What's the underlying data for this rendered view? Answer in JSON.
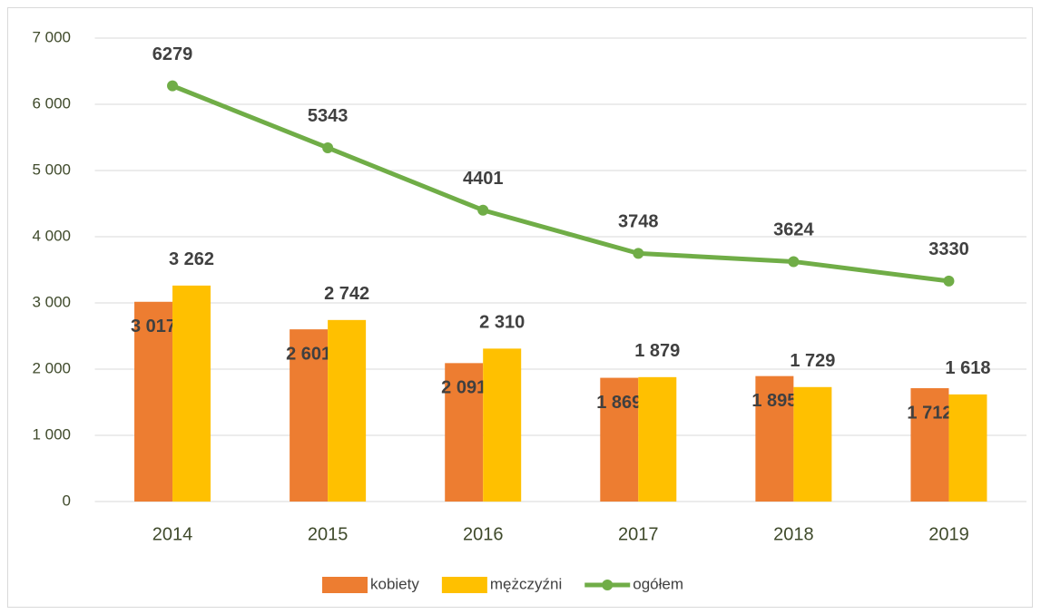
{
  "chart_data": {
    "type": "bar-line",
    "categories": [
      "2014",
      "2015",
      "2016",
      "2017",
      "2018",
      "2019"
    ],
    "series": [
      {
        "name": "kobiety",
        "type": "bar",
        "color": "#ed7d31",
        "values": [
          3017,
          2601,
          2091,
          1869,
          1895,
          1712
        ],
        "value_labels": [
          "3 017",
          "2 601",
          "2 091",
          "1 869",
          "1 895",
          "1 712"
        ]
      },
      {
        "name": "mężczyźni",
        "type": "bar",
        "color": "#ffc000",
        "values": [
          3262,
          2742,
          2310,
          1879,
          1729,
          1618
        ],
        "value_labels": [
          "3 262",
          "2 742",
          "2 310",
          "1 879",
          "1 729",
          "1 618"
        ]
      },
      {
        "name": "ogółem",
        "type": "line",
        "color": "#70ad47",
        "values": [
          6279,
          5343,
          4401,
          3748,
          3624,
          3330
        ]
      }
    ],
    "ylim": [
      0,
      7000
    ],
    "yticks": [
      0,
      {
        "value": 1000,
        "label": "1 000"
      },
      {
        "value": 2000,
        "label": "2 000"
      },
      {
        "value": 3000,
        "label": "3 000"
      },
      {
        "value": 4000,
        "label": "4 000"
      },
      {
        "value": 5000,
        "label": "5 000"
      },
      {
        "value": 6000,
        "label": "6 000"
      },
      {
        "value": 7000,
        "label": "7 000"
      }
    ],
    "grid": true,
    "legend": "bottom"
  }
}
